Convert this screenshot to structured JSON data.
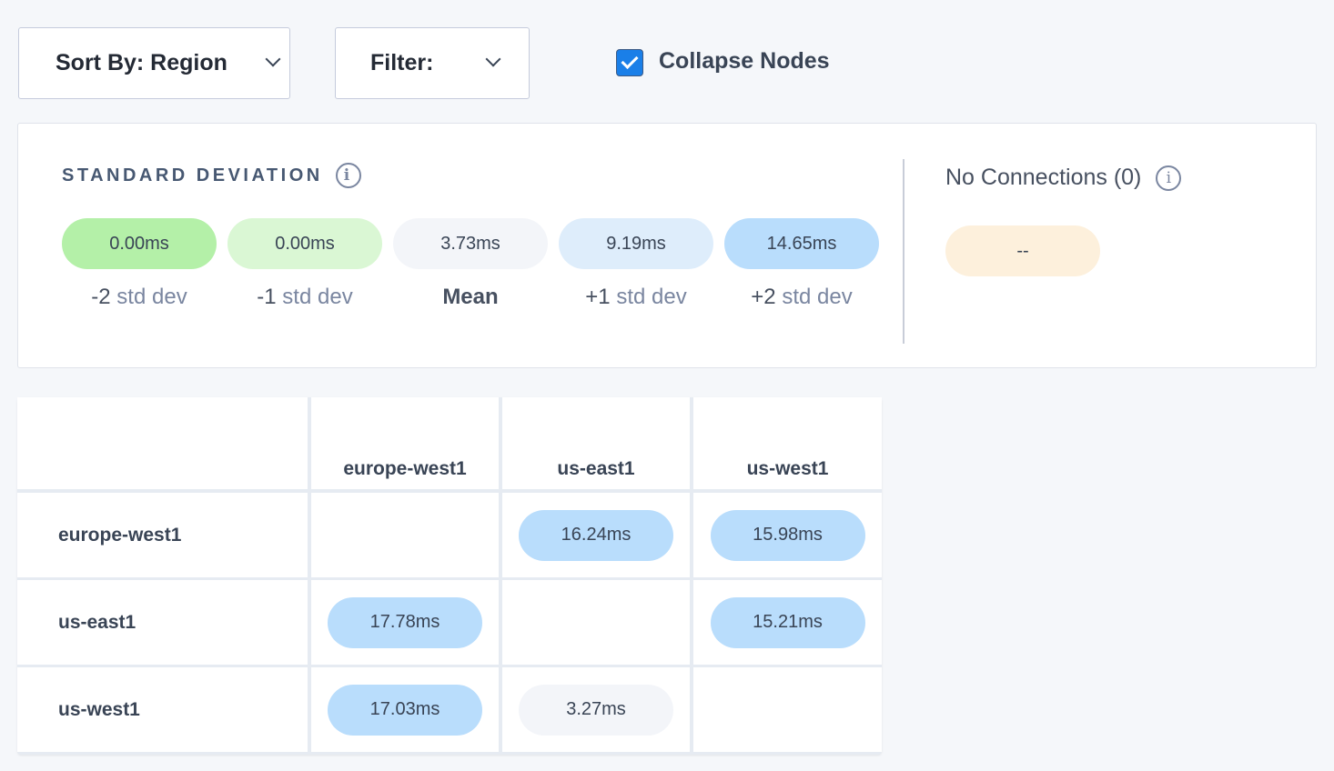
{
  "toolbar": {
    "sort_label": "Sort By: Region",
    "filter_label": "Filter:",
    "collapse_label": "Collapse Nodes",
    "collapse_checked": true
  },
  "stddev": {
    "title": "STANDARD DEVIATION",
    "items": [
      {
        "value": "0.00ms",
        "sign": "-2",
        "label": " std dev",
        "color": "#b4f0a8"
      },
      {
        "value": "0.00ms",
        "sign": "-1",
        "label": " std dev",
        "color": "#daf7d4"
      },
      {
        "value": "3.73ms",
        "sign": "Mean",
        "label": "",
        "color": "#f3f5f9"
      },
      {
        "value": "9.19ms",
        "sign": "+1",
        "label": " std dev",
        "color": "#deedfb"
      },
      {
        "value": "14.65ms",
        "sign": "+2",
        "label": " std dev",
        "color": "#b9ddfc"
      }
    ],
    "no_connections_label": "No Connections (0)",
    "no_connections_value": "--",
    "no_connections_color": "#fdf0dc"
  },
  "matrix": {
    "columns": [
      "europe-west1",
      "us-east1",
      "us-west1"
    ],
    "rows": [
      {
        "name": "europe-west1",
        "values": [
          "",
          "16.24ms",
          "15.98ms"
        ]
      },
      {
        "name": "us-east1",
        "values": [
          "17.78ms",
          "",
          "15.21ms"
        ]
      },
      {
        "name": "us-west1",
        "values": [
          "17.03ms",
          "3.27ms",
          ""
        ]
      }
    ]
  }
}
